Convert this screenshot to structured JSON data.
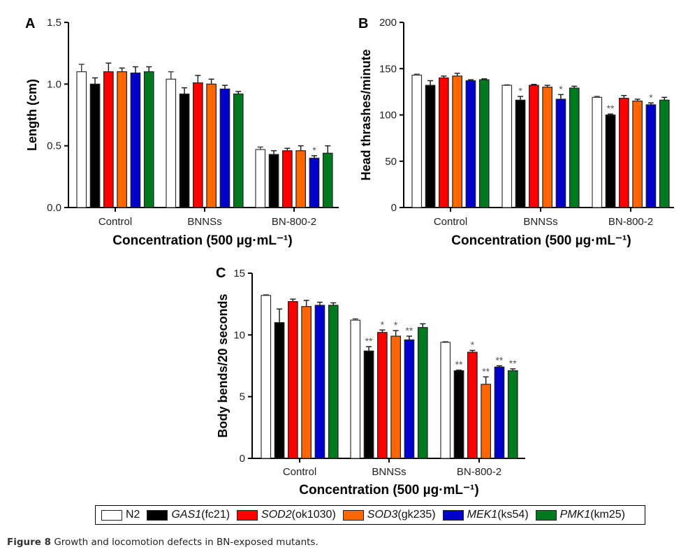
{
  "legend": [
    {
      "gene": "",
      "name": "N2",
      "allele": "",
      "color": "#ffffff"
    },
    {
      "gene": "GAS1",
      "name": "",
      "allele": "(fc21)",
      "color": "#000000"
    },
    {
      "gene": "SOD2",
      "name": "",
      "allele": "(ok1030)",
      "color": "#ff0000"
    },
    {
      "gene": "SOD3",
      "name": "",
      "allele": "(gk235)",
      "color": "#ff6600"
    },
    {
      "gene": "MEK1",
      "name": "",
      "allele": "(ks54)",
      "color": "#0000cc"
    },
    {
      "gene": "PMK1",
      "name": "",
      "allele": "(km25)",
      "color": "#007a1e"
    }
  ],
  "caption": {
    "label": "Figure 8",
    "text": " Growth and locomotion defects in BN-exposed mutants."
  },
  "chart_data": [
    {
      "type": "bar",
      "panel": "A",
      "title": "",
      "xlabel": "Concentration (500 µg·mL⁻¹)",
      "ylabel": "Length (cm)",
      "ylim": [
        0,
        1.5
      ],
      "yticks": [
        "0.0",
        "0.5",
        "1.0",
        "1.5"
      ],
      "yticks_values": [
        0,
        0.5,
        1.0,
        1.5
      ],
      "categories": [
        "Control",
        "BNNSs",
        "BN-800-2"
      ],
      "series": [
        {
          "name": "N2",
          "values": [
            1.1,
            1.04,
            0.47
          ],
          "errors": [
            0.06,
            0.06,
            0.02
          ],
          "sig": [
            "",
            "",
            ""
          ]
        },
        {
          "name": "GAS1 (fc21)",
          "values": [
            1.0,
            0.92,
            0.43
          ],
          "errors": [
            0.05,
            0.05,
            0.03
          ],
          "sig": [
            "",
            "",
            ""
          ]
        },
        {
          "name": "SOD2 (ok1030)",
          "values": [
            1.1,
            1.01,
            0.46
          ],
          "errors": [
            0.07,
            0.06,
            0.02
          ],
          "sig": [
            "",
            "",
            ""
          ]
        },
        {
          "name": "SOD3 (gk235)",
          "values": [
            1.1,
            1.0,
            0.46
          ],
          "errors": [
            0.03,
            0.04,
            0.04
          ],
          "sig": [
            "",
            "",
            ""
          ]
        },
        {
          "name": "MEK1 (ks54)",
          "values": [
            1.09,
            0.96,
            0.4
          ],
          "errors": [
            0.05,
            0.03,
            0.02
          ],
          "sig": [
            "",
            "",
            "*"
          ]
        },
        {
          "name": "PMK1 (km25)",
          "values": [
            1.1,
            0.92,
            0.44
          ],
          "errors": [
            0.04,
            0.02,
            0.06
          ],
          "sig": [
            "",
            "",
            ""
          ]
        }
      ],
      "grid": false,
      "legend": "bottom (shared)"
    },
    {
      "type": "bar",
      "panel": "B",
      "title": "",
      "xlabel": "Concentration (500 µg·mL⁻¹)",
      "ylabel": "Head thrashes/minute",
      "ylim": [
        0,
        200
      ],
      "yticks": [
        "0",
        "50",
        "100",
        "150",
        "200"
      ],
      "yticks_values": [
        0,
        50,
        100,
        150,
        200
      ],
      "categories": [
        "Control",
        "BNNSs",
        "BN-800-2"
      ],
      "series": [
        {
          "name": "N2",
          "values": [
            143,
            132,
            119
          ],
          "errors": [
            1,
            0.5,
            1
          ],
          "sig": [
            "",
            "",
            ""
          ]
        },
        {
          "name": "GAS1 (fc21)",
          "values": [
            132,
            116,
            100
          ],
          "errors": [
            5,
            4,
            1
          ],
          "sig": [
            "",
            "*",
            "**"
          ]
        },
        {
          "name": "SOD2 (ok1030)",
          "values": [
            140,
            132,
            118
          ],
          "errors": [
            2,
            1,
            3
          ],
          "sig": [
            "",
            "",
            ""
          ]
        },
        {
          "name": "SOD3 (gk235)",
          "values": [
            142,
            130,
            115
          ],
          "errors": [
            3,
            2,
            2
          ],
          "sig": [
            "",
            "",
            ""
          ]
        },
        {
          "name": "MEK1 (ks54)",
          "values": [
            137,
            117,
            111
          ],
          "errors": [
            1,
            5,
            2
          ],
          "sig": [
            "",
            "*",
            "*"
          ]
        },
        {
          "name": "PMK1 (km25)",
          "values": [
            138,
            129,
            116
          ],
          "errors": [
            1,
            2,
            3
          ],
          "sig": [
            "",
            "",
            ""
          ]
        }
      ],
      "grid": false,
      "legend": "bottom (shared)"
    },
    {
      "type": "bar",
      "panel": "C",
      "title": "",
      "xlabel": "Concentration (500 µg·mL⁻¹)",
      "ylabel": "Body bends/20 seconds",
      "ylim": [
        0,
        15
      ],
      "yticks": [
        "0",
        "5",
        "10",
        "15"
      ],
      "yticks_values": [
        0,
        5,
        10,
        15
      ],
      "categories": [
        "Control",
        "BNNSs",
        "BN-800-2"
      ],
      "series": [
        {
          "name": "N2",
          "values": [
            13.2,
            11.2,
            9.4
          ],
          "errors": [
            0.05,
            0.1,
            0.05
          ],
          "sig": [
            "",
            "",
            ""
          ]
        },
        {
          "name": "GAS1 (fc21)",
          "values": [
            11.0,
            8.7,
            7.1
          ],
          "errors": [
            1.1,
            0.35,
            0.05
          ],
          "sig": [
            "",
            "**",
            "**"
          ]
        },
        {
          "name": "SOD2 (ok1030)",
          "values": [
            12.7,
            10.2,
            8.6
          ],
          "errors": [
            0.2,
            0.2,
            0.15
          ],
          "sig": [
            "",
            "*",
            "*"
          ]
        },
        {
          "name": "SOD3 (gk235)",
          "values": [
            12.3,
            9.9,
            6.0
          ],
          "errors": [
            0.5,
            0.45,
            0.6
          ],
          "sig": [
            "",
            "*",
            "**"
          ]
        },
        {
          "name": "MEK1 (ks54)",
          "values": [
            12.4,
            9.6,
            7.4
          ],
          "errors": [
            0.25,
            0.3,
            0.1
          ],
          "sig": [
            "",
            "**",
            "**"
          ]
        },
        {
          "name": "PMK1 (km25)",
          "values": [
            12.4,
            10.6,
            7.1
          ],
          "errors": [
            0.2,
            0.3,
            0.15
          ],
          "sig": [
            "",
            "",
            "**"
          ]
        }
      ],
      "grid": false,
      "legend": "bottom (shared)"
    }
  ]
}
